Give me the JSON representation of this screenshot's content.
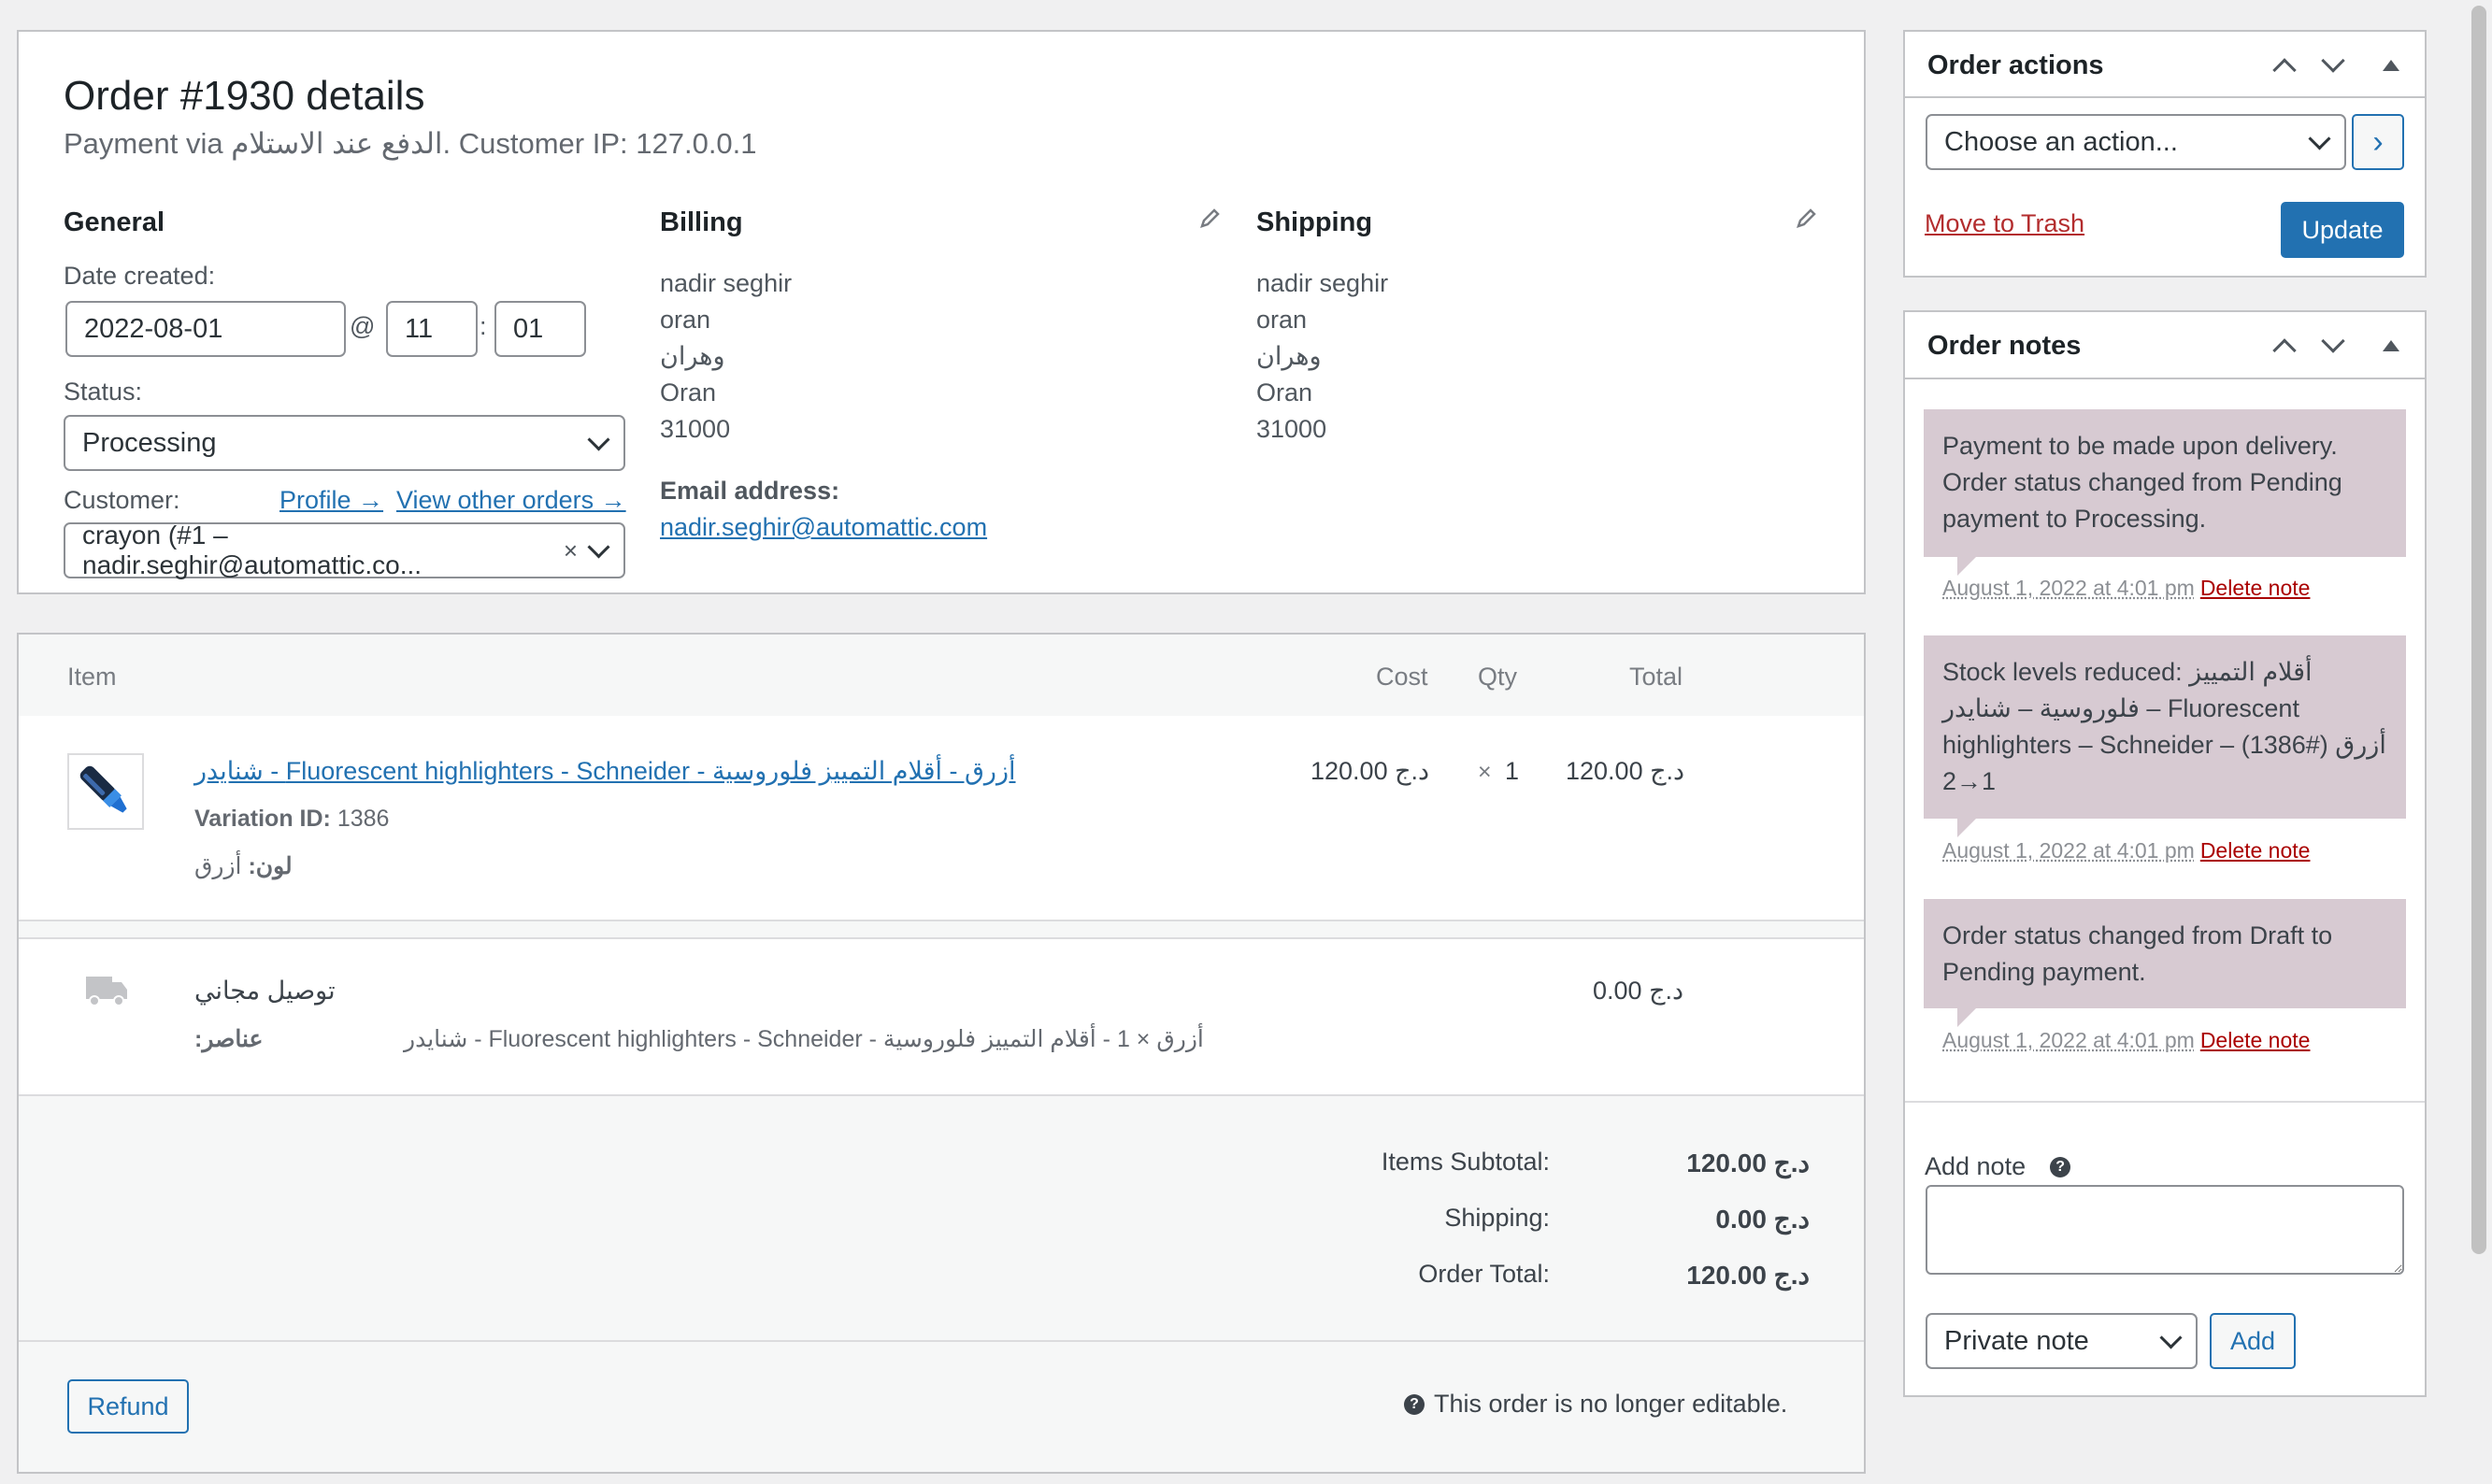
{
  "order": {
    "title": "Order #1930 details",
    "subtitle": "Payment via الدفع عند الاستلام. Customer IP: 127.0.0.1",
    "general": {
      "heading": "General",
      "date_label": "Date created:",
      "date_value": "2022-08-01",
      "at": "@",
      "hour": "11",
      "colon": ":",
      "minute": "01",
      "status_label": "Status:",
      "status_value": "Processing",
      "customer_label": "Customer:",
      "profile_link": "Profile →",
      "other_orders_link": "View other orders →",
      "customer_value": "crayon (#1 – nadir.seghir@automattic.co...",
      "clear": "×"
    },
    "billing": {
      "heading": "Billing",
      "lines": [
        "nadir seghir",
        "oran",
        "وهران",
        "Oran",
        "31000"
      ],
      "email_label": "Email address:",
      "email": "nadir.seghir@automattic.com"
    },
    "shipping": {
      "heading": "Shipping",
      "lines": [
        "nadir seghir",
        "oran",
        "وهران",
        "Oran",
        "31000"
      ]
    }
  },
  "items": {
    "headers": {
      "item": "Item",
      "cost": "Cost",
      "qty": "Qty",
      "total": "Total"
    },
    "product": {
      "name": "أزرق - أقلام التمييز فلوروسية - Fluorescent highlighters - Schneider - شنايدر",
      "variation_label": "Variation ID:",
      "variation_id": "1386",
      "attr_label": "لون:",
      "attr_value": "أزرق",
      "cost": "120.00 د.ج",
      "qty_x": "×",
      "qty": "1",
      "total": "120.00 د.ج"
    },
    "shipping_line": {
      "name": "توصيل مجاني",
      "items_label": "عناصر:",
      "items_value": "أزرق × 1 - أقلام التمييز فلوروسية - Fluorescent highlighters - Schneider - شنايدر",
      "total": "0.00 د.ج"
    },
    "totals": {
      "subtotal_label": "Items Subtotal:",
      "subtotal": "120.00 د.ج",
      "shipping_label": "Shipping:",
      "shipping": "0.00 د.ج",
      "order_total_label": "Order Total:",
      "order_total": "120.00 د.ج"
    },
    "refund_button": "Refund",
    "not_editable": "This order is no longer editable."
  },
  "order_actions": {
    "heading": "Order actions",
    "select": "Choose an action...",
    "go": "›",
    "trash": "Move to Trash",
    "update": "Update"
  },
  "order_notes": {
    "heading": "Order notes",
    "notes": [
      {
        "text": "Payment to be made upon delivery. Order status changed from Pending payment to Processing.",
        "date": "August 1, 2022 at 4:01 pm",
        "delete": "Delete note"
      },
      {
        "text": "Stock levels reduced: أقلام التمييز فلوروسية – شنايدر – Fluorescent highlighters – Schneider – أزرق (#1386) 1→2",
        "date": "August 1, 2022 at 4:01 pm",
        "delete": "Delete note"
      },
      {
        "text": "Order status changed from Draft to Pending payment.",
        "date": "August 1, 2022 at 4:01 pm",
        "delete": "Delete note"
      }
    ],
    "add_note_label": "Add note",
    "note_type": "Private note",
    "add_button": "Add"
  },
  "colors": {
    "accent": "#2271b1",
    "note_bg": "#d7cad2",
    "delete": "#aa0000",
    "page_bg": "#f0f0f1"
  }
}
